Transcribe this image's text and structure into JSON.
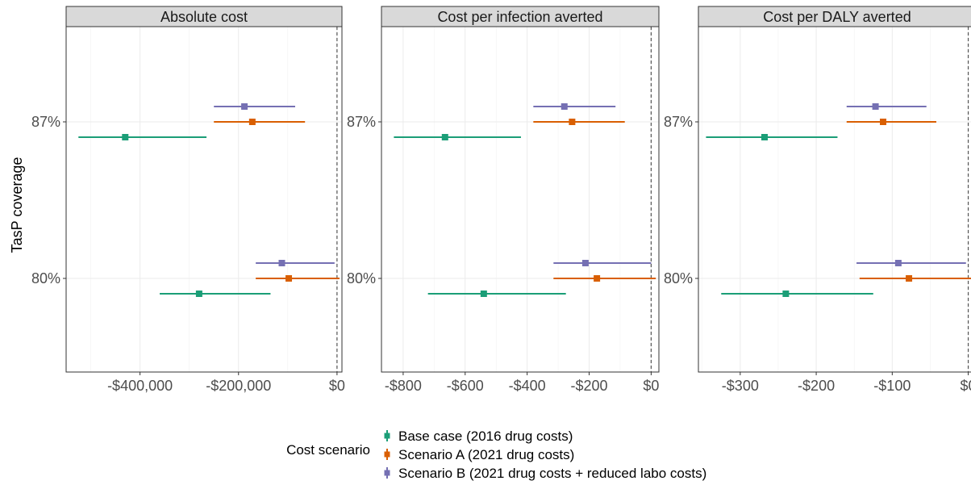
{
  "y_axis_title": "TasP coverage",
  "legend": {
    "title": "Cost scenario",
    "entries": [
      {
        "label": "Base case (2016 drug costs)",
        "color": "#1b9e77"
      },
      {
        "label": "Scenario A (2021 drug costs)",
        "color": "#d95f02"
      },
      {
        "label": "Scenario B (2021 drug costs + reduced labo costs)",
        "color": "#7570b3"
      }
    ]
  },
  "chart_data": [
    {
      "type": "scatter",
      "subtype": "point-range",
      "title": "Absolute cost",
      "ylabel": "TasP coverage",
      "categories": [
        "80%",
        "87%"
      ],
      "xlim": [
        -550000,
        10000
      ],
      "xticks": [
        -400000,
        -200000,
        0
      ],
      "xtick_labels": [
        "-$400,000",
        "-$200,000",
        "$0"
      ],
      "reference_line": 0,
      "series": [
        {
          "name": "Base case (2016 drug costs)",
          "values": [
            -280000,
            -430000
          ],
          "lower": [
            -360000,
            -525000
          ],
          "upper": [
            -135000,
            -265000
          ]
        },
        {
          "name": "Scenario A (2021 drug costs)",
          "values": [
            -98000,
            -172000
          ],
          "lower": [
            -165000,
            -250000
          ],
          "upper": [
            5000,
            -65000
          ]
        },
        {
          "name": "Scenario B (2021 drug costs + reduced labo costs)",
          "values": [
            -112000,
            -188000
          ],
          "lower": [
            -165000,
            -250000
          ],
          "upper": [
            -5000,
            -85000
          ]
        }
      ]
    },
    {
      "type": "scatter",
      "subtype": "point-range",
      "title": "Cost per infection averted",
      "ylabel": "TasP coverage",
      "categories": [
        "80%",
        "87%"
      ],
      "xlim": [
        -870,
        25
      ],
      "xticks": [
        -800,
        -600,
        -400,
        -200,
        0
      ],
      "xtick_labels": [
        "-$800",
        "-$600",
        "-$400",
        "-$200",
        "$0"
      ],
      "reference_line": 0,
      "series": [
        {
          "name": "Base case (2016 drug costs)",
          "values": [
            -540,
            -665
          ],
          "lower": [
            -720,
            -830
          ],
          "upper": [
            -275,
            -420
          ]
        },
        {
          "name": "Scenario A (2021 drug costs)",
          "values": [
            -175,
            -255
          ],
          "lower": [
            -315,
            -380
          ],
          "upper": [
            15,
            -85
          ]
        },
        {
          "name": "Scenario B (2021 drug costs + reduced labo costs)",
          "values": [
            -212,
            -280
          ],
          "lower": [
            -315,
            -380
          ],
          "upper": [
            0,
            -115
          ]
        }
      ]
    },
    {
      "type": "scatter",
      "subtype": "point-range",
      "title": "Cost per DALY averted",
      "ylabel": "TasP coverage",
      "categories": [
        "80%",
        "87%"
      ],
      "xlim": [
        -355,
        10
      ],
      "xticks": [
        -300,
        -200,
        -100,
        0
      ],
      "xtick_labels": [
        "-$300",
        "-$200",
        "-$100",
        "$0"
      ],
      "reference_line": 0,
      "series": [
        {
          "name": "Base case (2016 drug costs)",
          "values": [
            -240,
            -268
          ],
          "lower": [
            -325,
            -345
          ],
          "upper": [
            -125,
            -172
          ]
        },
        {
          "name": "Scenario A (2021 drug costs)",
          "values": [
            -78,
            -112
          ],
          "lower": [
            -143,
            -160
          ],
          "upper": [
            5,
            -42
          ]
        },
        {
          "name": "Scenario B (2021 drug costs + reduced labo costs)",
          "values": [
            -92,
            -122
          ],
          "lower": [
            -147,
            -160
          ],
          "upper": [
            -3,
            -55
          ]
        }
      ]
    }
  ]
}
